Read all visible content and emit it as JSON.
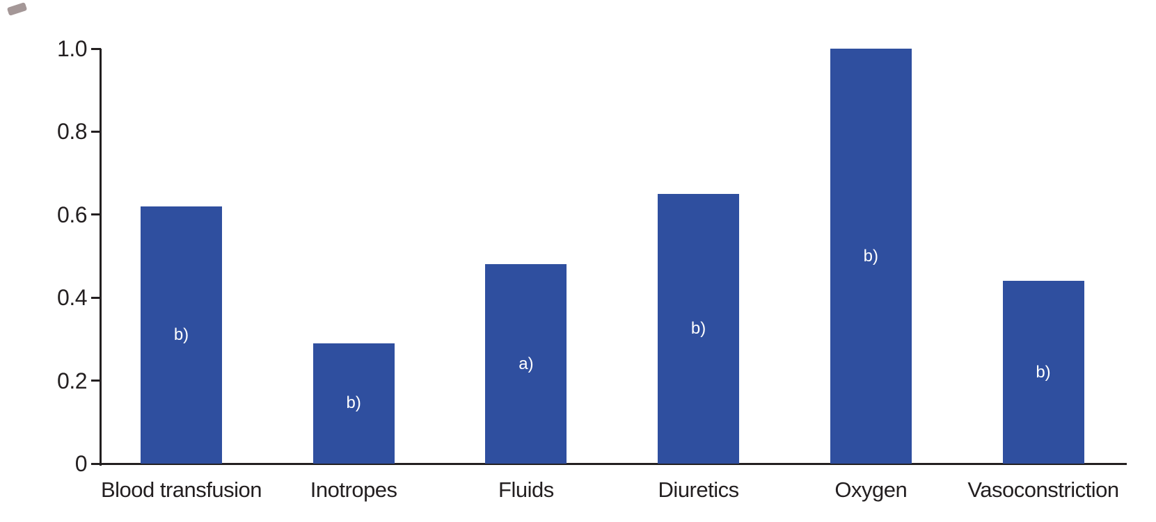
{
  "chart_data": {
    "type": "bar",
    "categories": [
      "Blood transfusion",
      "Inotropes",
      "Fluids",
      "Diuretics",
      "Oxygen",
      "Vasoconstriction"
    ],
    "values": [
      0.62,
      0.29,
      0.48,
      0.65,
      1.0,
      0.44
    ],
    "bar_annotations": [
      "b)",
      "b)",
      "a)",
      "b)",
      "b)",
      "b)"
    ],
    "ytick_values": [
      0,
      0.2,
      0.4,
      0.6,
      0.8,
      1.0
    ],
    "ytick_labels": [
      "0",
      "0.2",
      "0.4",
      "0.6",
      "0.8",
      "1.0"
    ],
    "ylim": [
      0,
      1.0
    ],
    "grid": false,
    "legend": null,
    "title": "",
    "xlabel": "",
    "ylabel": "",
    "bar_color": "#2f4f9f",
    "axis_color": "#231f20",
    "annotation_text_color": "#ffffff"
  }
}
